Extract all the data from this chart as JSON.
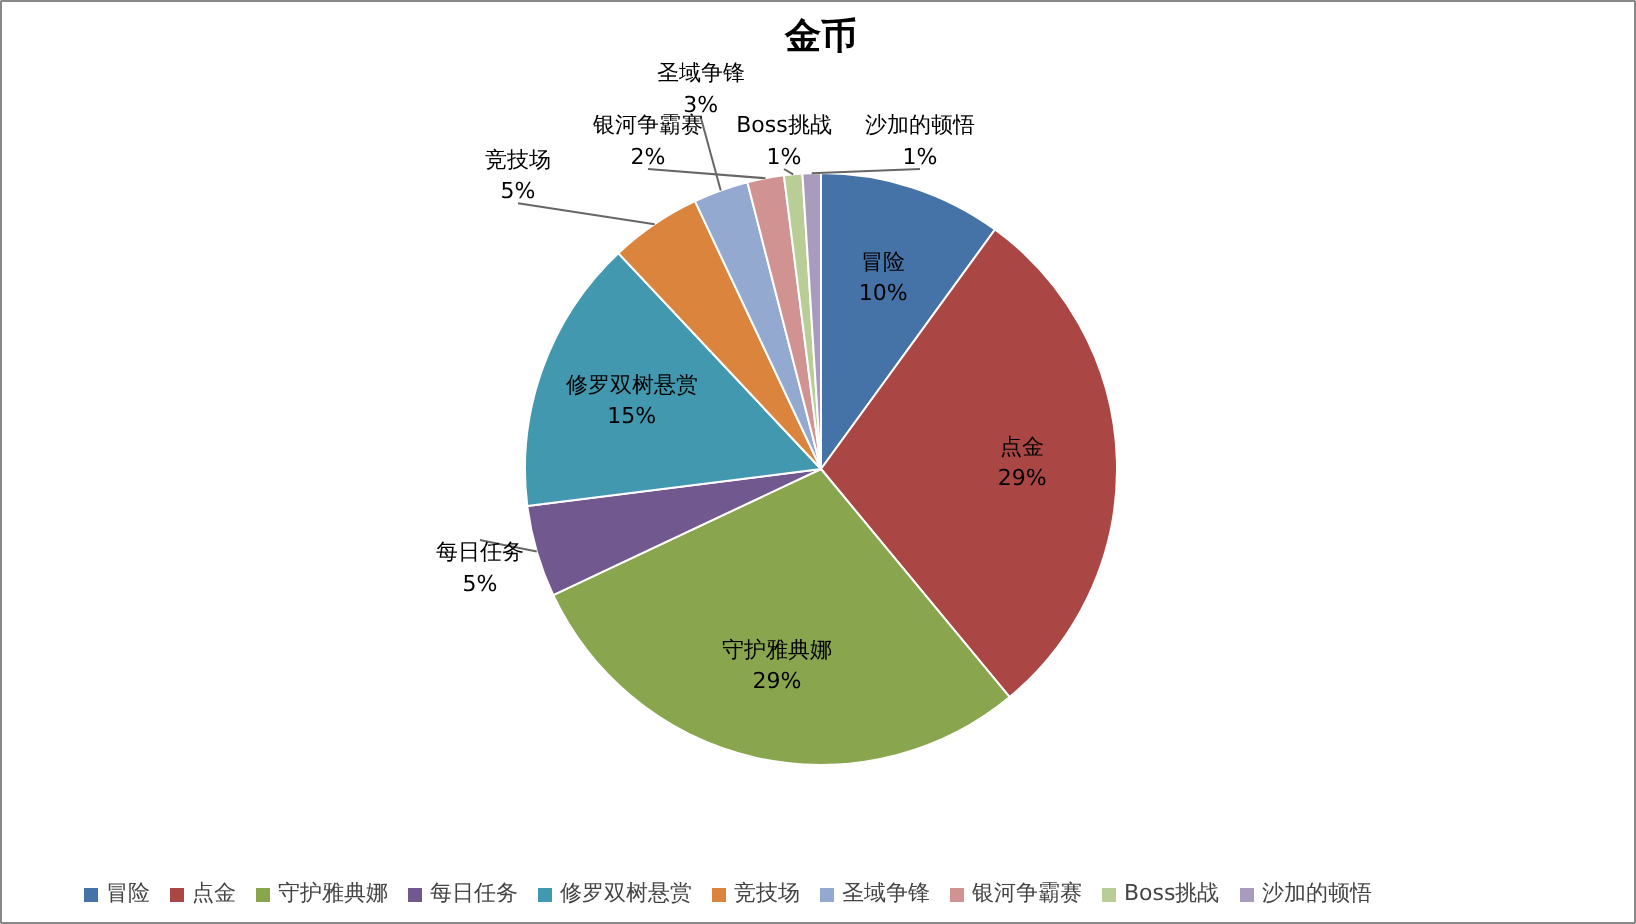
{
  "chart_data": {
    "type": "pie",
    "title": "金币",
    "categories": [
      "冒险",
      "点金",
      "守护雅典娜",
      "每日任务",
      "修罗双树悬赏",
      "竞技场",
      "圣域争锋",
      "银河争霸赛",
      "Boss挑战",
      "沙加的顿悟"
    ],
    "values": [
      10,
      29,
      29,
      5,
      15,
      5,
      3,
      2,
      1,
      1
    ],
    "colors": [
      "#4572a7",
      "#aa4643",
      "#89a54e",
      "#71588f",
      "#4198af",
      "#db843d",
      "#93a9cf",
      "#d19392",
      "#b9cd96",
      "#a99bbd"
    ],
    "value_labels": [
      "10%",
      "29%",
      "29%",
      "5%",
      "15%",
      "5%",
      "3%",
      "2%",
      "1%",
      "1%"
    ],
    "data_labels": true,
    "legend": "bottom"
  }
}
